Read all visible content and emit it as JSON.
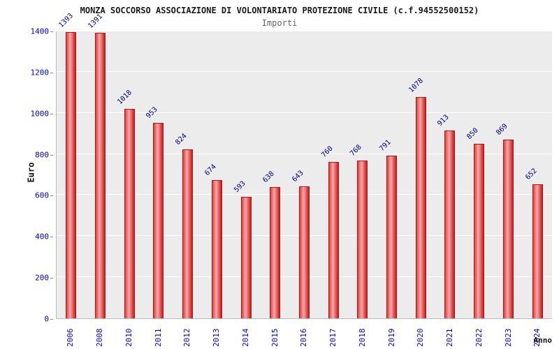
{
  "header": {
    "title": "MONZA SOCCORSO ASSOCIAZIONE DI VOLONTARIATO PROTEZIONE CIVILE (c.f.94552500152)",
    "subtitle": "Importi"
  },
  "axes": {
    "y_title": "Euro",
    "x_title": "Anno"
  },
  "colors": {
    "bar_main": "#cc1a1a",
    "bar_highlight": "#f7a8a8",
    "value_label": "#00008b",
    "tick_label": "#0000cc",
    "plot_background": "#ececec",
    "gridline": "#ffffff"
  },
  "chart_data": {
    "type": "bar",
    "title": "MONZA SOCCORSO ASSOCIAZIONE DI VOLONTARIATO PROTEZIONE CIVILE (c.f.94552500152)",
    "subtitle": "Importi",
    "xlabel": "Anno",
    "ylabel": "Euro",
    "categories": [
      "2006",
      "2008",
      "2010",
      "2011",
      "2012",
      "2013",
      "2014",
      "2015",
      "2016",
      "2017",
      "2018",
      "2019",
      "2020",
      "2021",
      "2022",
      "2023",
      "2024"
    ],
    "values": [
      1393,
      1391,
      1018,
      953,
      824,
      674,
      593,
      638,
      643,
      760,
      768,
      791,
      1078,
      913,
      850,
      869,
      652
    ],
    "ylim": [
      0,
      1400
    ],
    "yticks": [
      0,
      200,
      400,
      600,
      800,
      1000,
      1200,
      1400
    ],
    "grid": true,
    "legend": "none"
  }
}
